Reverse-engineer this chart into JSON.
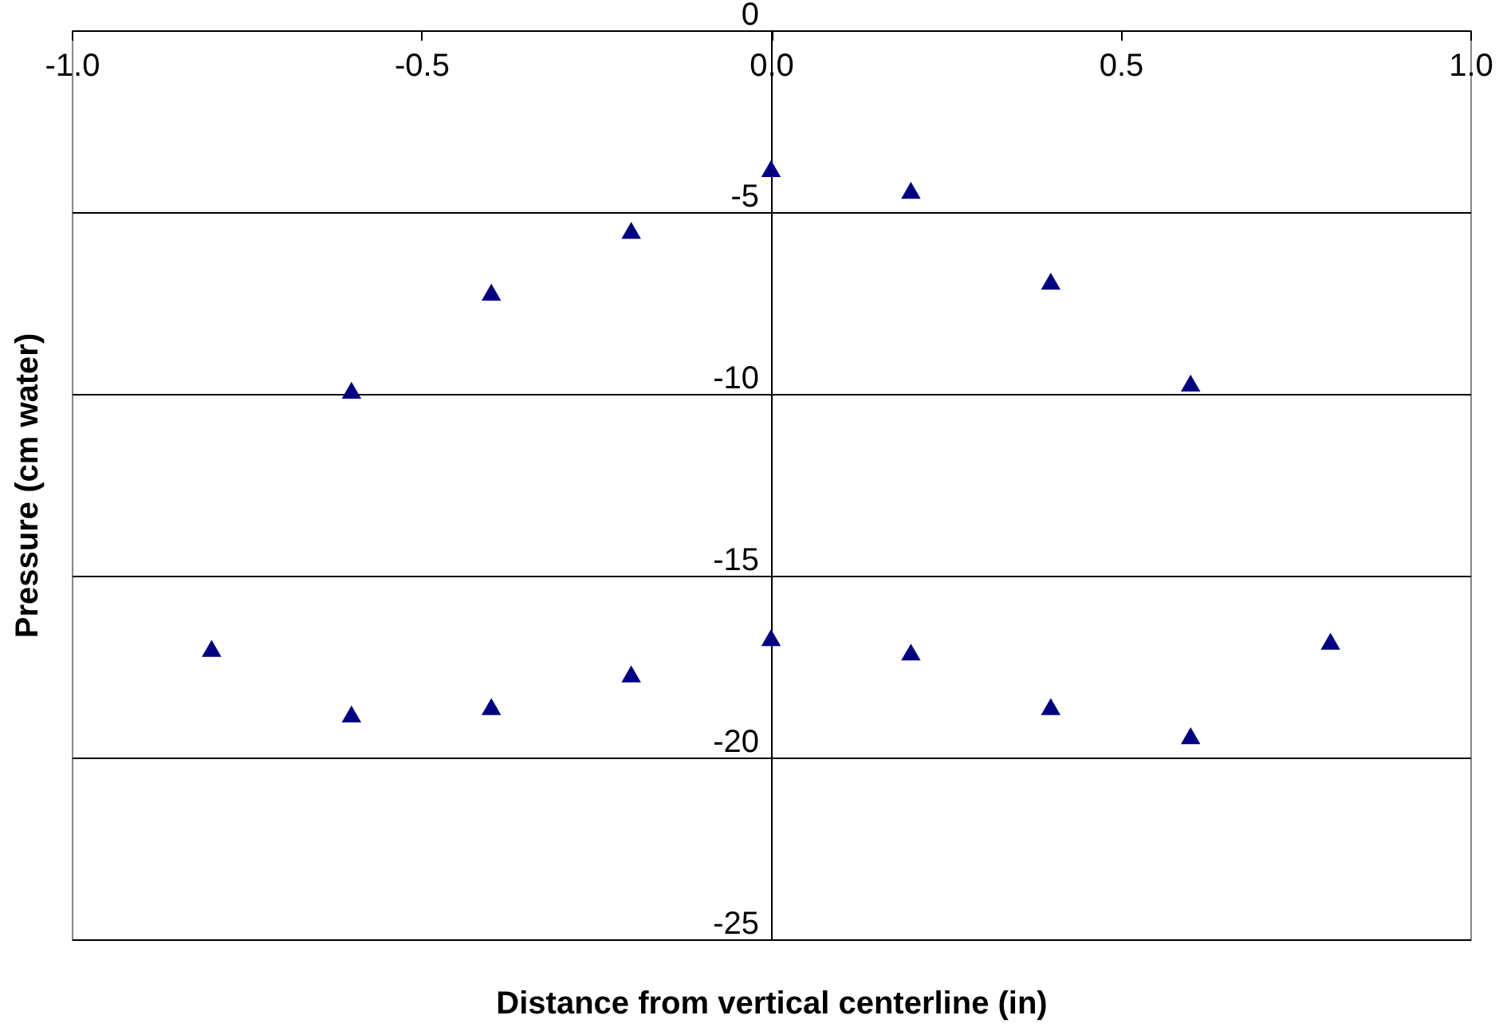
{
  "chart_data": {
    "type": "scatter",
    "xlabel": "Distance from vertical centerline (in)",
    "ylabel": "Pressure (cm water)",
    "xlim": [
      -1.0,
      1.0
    ],
    "xticks": [
      {
        "value": -1,
        "label": "-1.0"
      },
      {
        "value": -0.5,
        "label": "-0.5"
      },
      {
        "value": 0,
        "label": "0.0"
      },
      {
        "value": 0.5,
        "label": "0.5"
      },
      {
        "value": 1,
        "label": "1.0"
      }
    ],
    "ylim": [
      -25,
      0
    ],
    "yticks": [
      -25,
      -20,
      -15,
      -10,
      -5,
      0
    ],
    "grid": "y",
    "marker": "triangle",
    "series": [
      {
        "color": "#000080",
        "x": [
          -0.6,
          -0.4,
          -0.2,
          0,
          0.2,
          0.4,
          0.6,
          -0.8,
          -0.6,
          -0.4,
          -0.2,
          0,
          0.2,
          0.4,
          0.6,
          0.8
        ],
        "values": [
          -9.9,
          -7.2,
          -5.5,
          -3.8,
          -4.4,
          -6.9,
          -9.7,
          -17.0,
          -18.8,
          -18.6,
          -17.7,
          -16.7,
          -17.1,
          -18.6,
          -19.4,
          -16.8
        ]
      }
    ]
  }
}
